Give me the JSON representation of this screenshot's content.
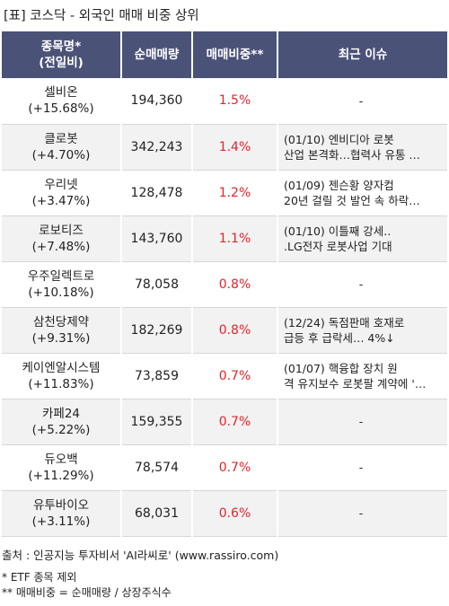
{
  "title": "[표] 코스닥 - 외국인 매매 비중 상위",
  "table": {
    "headers": {
      "name_line1": "종목명*",
      "name_line2": "(전일비)",
      "volume": "순매매량",
      "ratio": "매매비중**",
      "issue": "최근 이슈"
    },
    "rows": [
      {
        "name": "셀비온",
        "change": "(+15.68%)",
        "volume": "194,360",
        "ratio": "1.5%",
        "issue1": "-",
        "issue2": ""
      },
      {
        "name": "클로봇",
        "change": "(+4.70%)",
        "volume": "342,243",
        "ratio": "1.4%",
        "issue1": "(01/10) 엔비디아 로봇",
        "issue2": "산업 본격화…협력사 유통 …"
      },
      {
        "name": "우리넷",
        "change": "(+3.47%)",
        "volume": "128,478",
        "ratio": "1.2%",
        "issue1": "(01/09) 젠슨황 양자컴",
        "issue2": "20년 걸릴 것 발언 속 하락…"
      },
      {
        "name": "로보티즈",
        "change": "(+7.48%)",
        "volume": "143,760",
        "ratio": "1.1%",
        "issue1": "(01/10) 이틀째 강세..",
        "issue2": ".LG전자 로봇사업 기대"
      },
      {
        "name": "우주일렉트로",
        "change": "(+10.18%)",
        "volume": "78,058",
        "ratio": "0.8%",
        "issue1": "-",
        "issue2": ""
      },
      {
        "name": "삼천당제약",
        "change": "(+9.31%)",
        "volume": "182,269",
        "ratio": "0.8%",
        "issue1": "(12/24) 독점판매 호재로",
        "issue2": "급등 후 급락세… 4%↓"
      },
      {
        "name": "케이엔알시스템",
        "change": "(+11.83%)",
        "volume": "73,859",
        "ratio": "0.7%",
        "issue1": "(01/07) 핵융합 장치 원",
        "issue2": "격 유지보수 로봇팔 계약에 '…"
      },
      {
        "name": "카페24",
        "change": "(+5.22%)",
        "volume": "159,355",
        "ratio": "0.7%",
        "issue1": "-",
        "issue2": ""
      },
      {
        "name": "듀오백",
        "change": "(+11.29%)",
        "volume": "78,574",
        "ratio": "0.7%",
        "issue1": "-",
        "issue2": ""
      },
      {
        "name": "유투바이오",
        "change": "(+3.11%)",
        "volume": "68,031",
        "ratio": "0.6%",
        "issue1": "-",
        "issue2": ""
      }
    ]
  },
  "footer": {
    "source": "출처 : 인공지능 투자비서 'AI라씨로' (www.rassiro.com)",
    "note1": "* ETF 종목 제외",
    "note2": "** 매매비중 = 순매매량 / 상장주식수"
  },
  "colors": {
    "header_bg": "#4a5278",
    "ratio_text": "#e8222a",
    "row_alt": "#f2f2f2"
  }
}
